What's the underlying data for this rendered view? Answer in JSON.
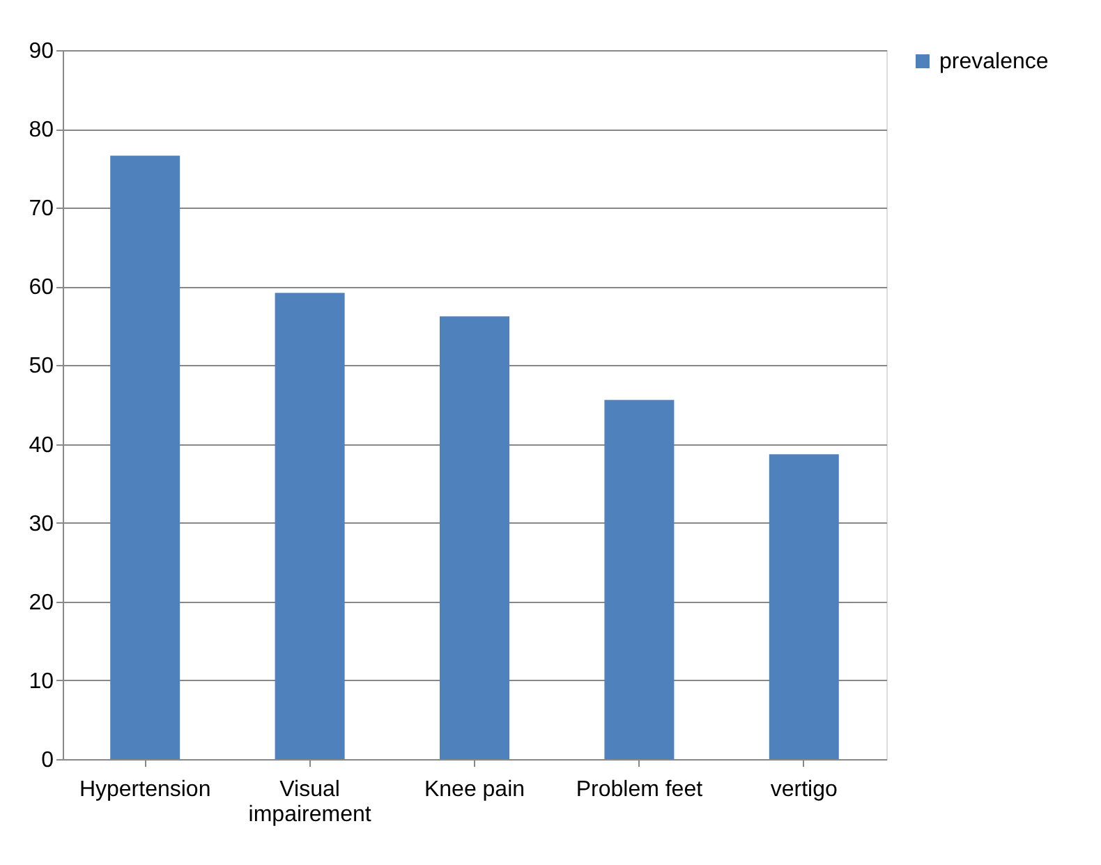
{
  "chart_data": {
    "type": "bar",
    "categories": [
      "Hypertension",
      "Visual impairement",
      "Knee pain",
      "Problem feet",
      "vertigo"
    ],
    "series": [
      {
        "name": "prevalence",
        "color": "#4f81bd",
        "values": [
          76.6,
          59.2,
          56.2,
          45.6,
          38.7
        ]
      }
    ],
    "ylim": [
      0,
      90
    ],
    "yticks": [
      0,
      10,
      20,
      30,
      40,
      50,
      60,
      70,
      80,
      90
    ],
    "grid": "y",
    "legend": "right"
  }
}
